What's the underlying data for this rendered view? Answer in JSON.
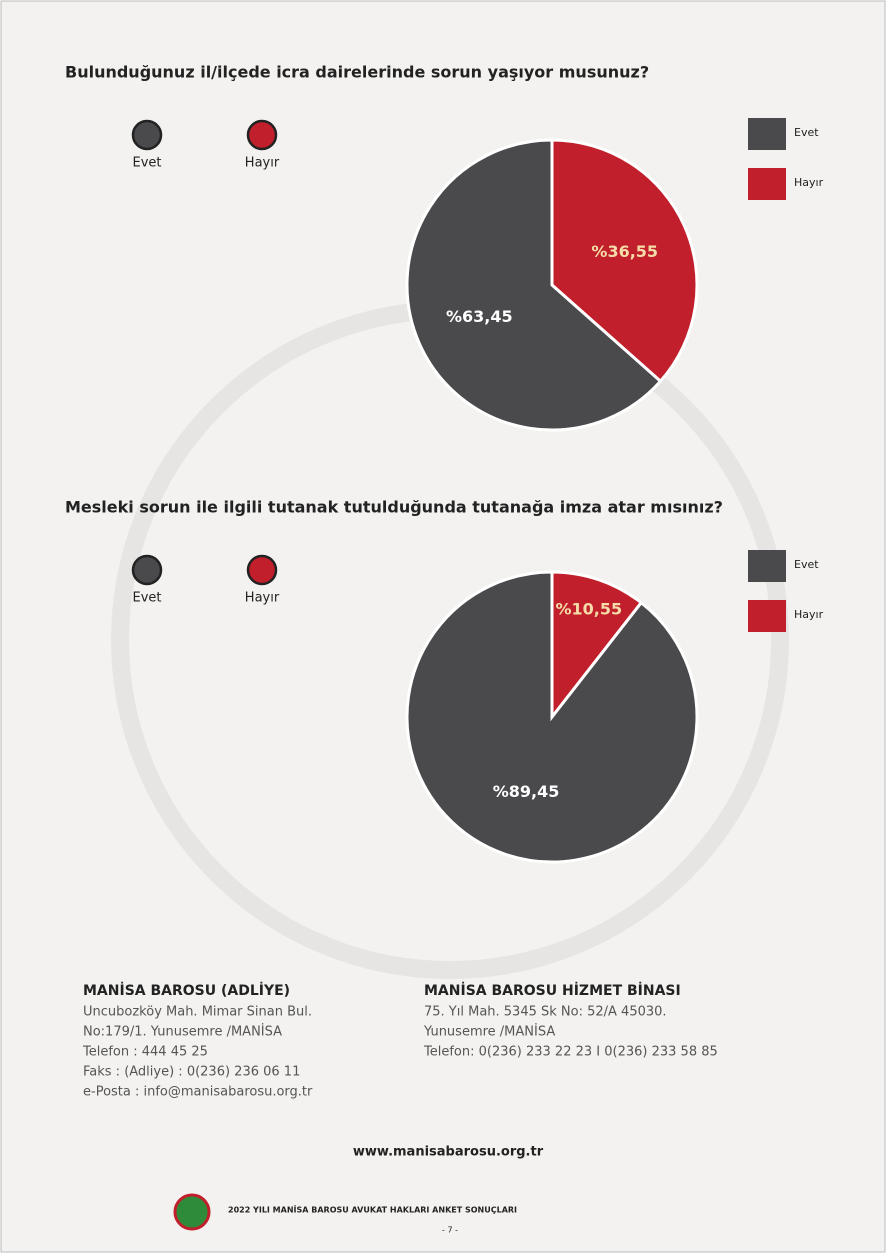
{
  "chart_data": [
    {
      "type": "pie",
      "title": "Bulunduğunuz il/ilçede icra dairelerinde sorun yaşıyor musunuz?",
      "categories": [
        "Evet",
        "Hayır"
      ],
      "values": [
        63.45,
        36.55
      ],
      "value_labels": [
        "%63,45",
        "%36,55"
      ],
      "colors": [
        "#4a4a4d",
        "#c21f2c"
      ]
    },
    {
      "type": "pie",
      "title": "Mesleki sorun ile ilgili tutanak tutulduğunda tutanağa imza atar mısınız?",
      "categories": [
        "Evet",
        "Hayır"
      ],
      "values": [
        89.45,
        10.55
      ],
      "value_labels": [
        "%89,45",
        "%10,55"
      ],
      "colors": [
        "#4a4a4d",
        "#c21f2c"
      ]
    }
  ],
  "contacts": [
    {
      "heading": "MANİSA BAROSU (ADLİYE)",
      "lines": [
        "Uncubozköy Mah. Mimar Sinan Bul.",
        "No:179/1. Yunusemre /MANİSA",
        "Telefon : 444 45 25",
        "Faks : (Adliye) : 0(236) 236 06 11",
        "e-Posta : info@manisabarosu.org.tr"
      ]
    },
    {
      "heading": "MANİSA BAROSU HİZMET BİNASI",
      "lines": [
        "75. Yıl Mah. 5345 Sk No: 52/A 45030.",
        "Yunusemre /MANİSA",
        "Telefon: 0(236) 233 22 23 I 0(236) 233 58 85"
      ]
    }
  ],
  "website": "www.manisabarosu.org.tr",
  "footer": {
    "title": "2022 YILI MANİSA BAROSU AVUKAT HAKLARI ANKET SONUÇLARI",
    "page": "- 7 -"
  }
}
